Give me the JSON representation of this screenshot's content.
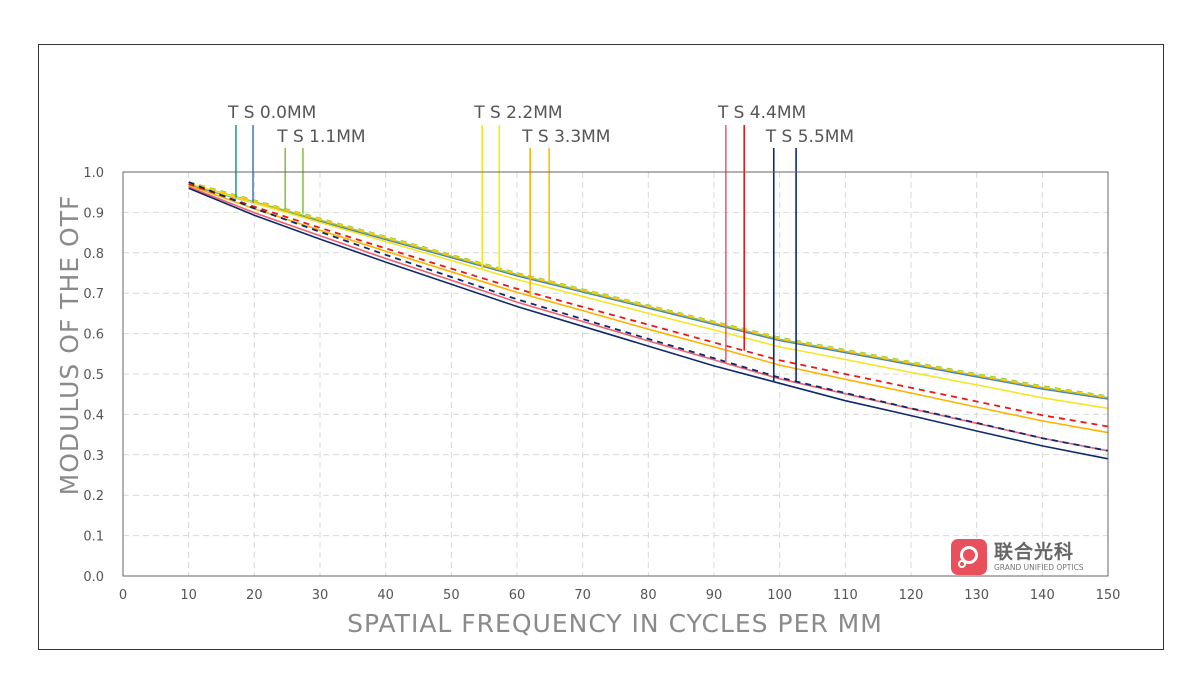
{
  "chart_data": {
    "type": "line",
    "title": "",
    "xlabel": "SPATIAL FREQUENCY IN CYCLES PER MM",
    "ylabel": "MODULUS OF THE OTF",
    "xlim": [
      0,
      150
    ],
    "ylim": [
      0,
      1.0
    ],
    "grid": true,
    "x_ticks": [
      "0",
      "10",
      "20",
      "30",
      "40",
      "50",
      "60",
      "70",
      "80",
      "90",
      "100",
      "110",
      "120",
      "130",
      "140",
      "150"
    ],
    "y_ticks": [
      "0.0",
      "0.1",
      "0.2",
      "0.3",
      "0.4",
      "0.5",
      "0.6",
      "0.7",
      "0.8",
      "0.9",
      "1.0"
    ],
    "x": [
      10,
      20,
      30,
      40,
      50,
      60,
      70,
      80,
      90,
      100,
      110,
      120,
      130,
      140,
      150
    ],
    "series": [
      {
        "name": "TS 0.0MM S",
        "color": "#2a9d8f",
        "dash": false,
        "values": [
          0.969,
          0.924,
          0.879,
          0.834,
          0.789,
          0.744,
          0.704,
          0.664,
          0.624,
          0.584,
          0.554,
          0.524,
          0.494,
          0.464,
          0.439
        ]
      },
      {
        "name": "TS 0.0MM T",
        "color": "#4a7fc1",
        "dash": false,
        "values": [
          0.968,
          0.923,
          0.878,
          0.833,
          0.788,
          0.743,
          0.703,
          0.663,
          0.623,
          0.583,
          0.553,
          0.523,
          0.493,
          0.463,
          0.438
        ]
      },
      {
        "name": "TS 1.1MM S",
        "color": "#8bc34a",
        "dash": false,
        "values": [
          0.971,
          0.926,
          0.881,
          0.836,
          0.791,
          0.746,
          0.706,
          0.666,
          0.626,
          0.586,
          0.556,
          0.526,
          0.496,
          0.466,
          0.441
        ]
      },
      {
        "name": "TS 1.1MM T",
        "color": "#8bc34a",
        "dash": true,
        "values": [
          0.975,
          0.93,
          0.885,
          0.84,
          0.795,
          0.75,
          0.71,
          0.67,
          0.63,
          0.59,
          0.56,
          0.53,
          0.5,
          0.47,
          0.445
        ]
      },
      {
        "name": "TS 2.2MM S",
        "color": "#f5e625",
        "dash": false,
        "values": [
          0.972,
          0.923,
          0.875,
          0.828,
          0.781,
          0.734,
          0.692,
          0.65,
          0.609,
          0.567,
          0.536,
          0.504,
          0.473,
          0.441,
          0.415
        ]
      },
      {
        "name": "TS 2.2MM T",
        "color": "#f5f000",
        "dash": true,
        "values": [
          0.973,
          0.928,
          0.883,
          0.838,
          0.793,
          0.748,
          0.708,
          0.668,
          0.628,
          0.588,
          0.558,
          0.528,
          0.498,
          0.468,
          0.443
        ]
      },
      {
        "name": "TS 3.3MM S",
        "color": "#ffb300",
        "dash": false,
        "values": [
          0.967,
          0.909,
          0.856,
          0.804,
          0.753,
          0.702,
          0.657,
          0.611,
          0.567,
          0.522,
          0.487,
          0.453,
          0.418,
          0.384,
          0.355
        ]
      },
      {
        "name": "TS 3.3MM T",
        "color": "#ffc107",
        "dash": true,
        "values": [
          0.972,
          0.927,
          0.882,
          0.837,
          0.792,
          0.747,
          0.707,
          0.667,
          0.627,
          0.587,
          0.557,
          0.527,
          0.497,
          0.467,
          0.442
        ]
      },
      {
        "name": "TS 4.4MM S",
        "color": "#f06070",
        "dash": false,
        "values": [
          0.963,
          0.899,
          0.842,
          0.786,
          0.732,
          0.678,
          0.63,
          0.582,
          0.535,
          0.488,
          0.451,
          0.414,
          0.378,
          0.341,
          0.31
        ]
      },
      {
        "name": "TS 4.4MM T",
        "color": "#e81818",
        "dash": true,
        "values": [
          0.97,
          0.914,
          0.862,
          0.811,
          0.761,
          0.711,
          0.666,
          0.622,
          0.578,
          0.534,
          0.5,
          0.466,
          0.432,
          0.398,
          0.37
        ]
      },
      {
        "name": "TS 5.5MM S",
        "color": "#0d2a6b",
        "dash": false,
        "values": [
          0.96,
          0.893,
          0.834,
          0.777,
          0.722,
          0.667,
          0.618,
          0.569,
          0.52,
          0.477,
          0.434,
          0.397,
          0.359,
          0.322,
          0.29
        ]
      },
      {
        "name": "TS 5.5MM T",
        "color": "#0d2a6b",
        "dash": true,
        "values": [
          0.975,
          0.91,
          0.852,
          0.795,
          0.74,
          0.685,
          0.636,
          0.587,
          0.539,
          0.491,
          0.453,
          0.415,
          0.379,
          0.341,
          0.31
        ]
      }
    ],
    "legend": [
      {
        "label": "T S 0.0MM",
        "row": 1,
        "markers": [
          {
            "x": 17.2,
            "series": 0
          },
          {
            "x": 19.8,
            "series": 1
          }
        ]
      },
      {
        "label": "T S 1.1MM",
        "row": 2,
        "markers": [
          {
            "x": 24.7,
            "series": 2
          },
          {
            "x": 27.4,
            "series": 3
          }
        ]
      },
      {
        "label": "T S 2.2MM",
        "row": 1,
        "markers": [
          {
            "x": 54.7,
            "series": 4
          },
          {
            "x": 57.3,
            "series": 5
          }
        ]
      },
      {
        "label": "T S 3.3MM",
        "row": 2,
        "markers": [
          {
            "x": 62.0,
            "series": 6
          },
          {
            "x": 64.9,
            "series": 7
          }
        ]
      },
      {
        "label": "T S 4.4MM",
        "row": 1,
        "markers": [
          {
            "x": 91.8,
            "series": 8
          },
          {
            "x": 94.6,
            "series": 9
          }
        ]
      },
      {
        "label": "T S 5.5MM",
        "row": 2,
        "markers": [
          {
            "x": 99.1,
            "series": 10
          },
          {
            "x": 102.5,
            "series": 11
          }
        ]
      }
    ]
  },
  "logo": {
    "name_cn": "联合光科",
    "name_en": "GRAND UNIFIED OPTICS"
  }
}
